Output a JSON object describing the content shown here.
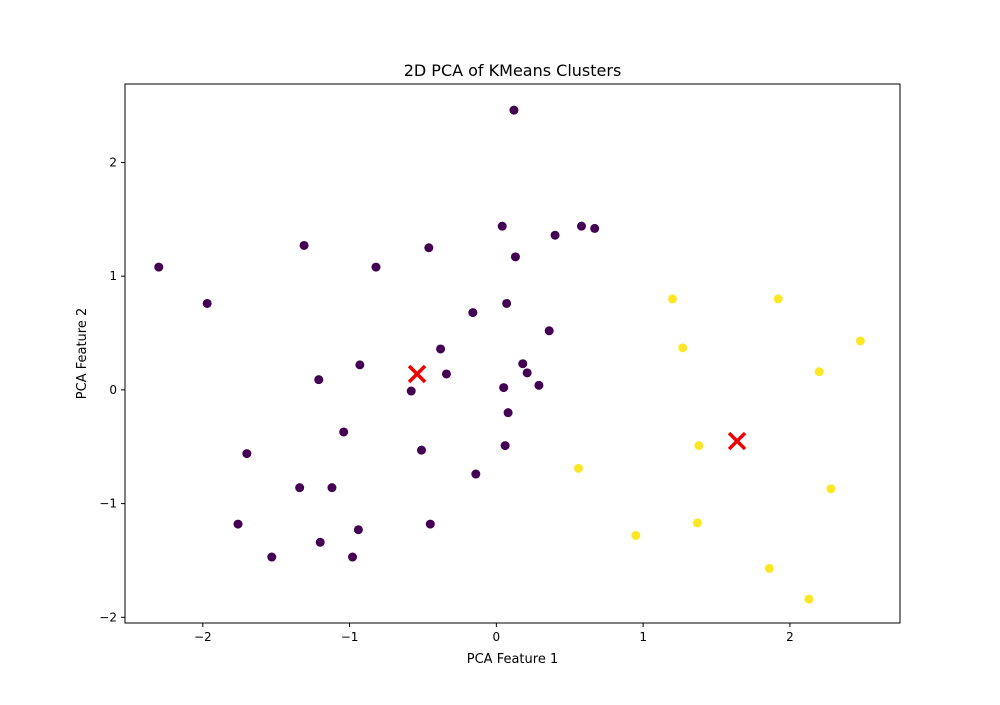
{
  "chart_data": {
    "type": "scatter",
    "title": "2D PCA of KMeans Clusters",
    "xlabel": "PCA Feature 1",
    "ylabel": "PCA Feature 2",
    "xlim": [
      -2.53,
      2.75
    ],
    "ylim": [
      -2.05,
      2.69
    ],
    "xticks": [
      -2,
      -1,
      0,
      1,
      2
    ],
    "yticks": [
      -2,
      -1,
      0,
      1,
      2
    ],
    "grid": false,
    "colors": {
      "cluster_0": "#440154",
      "cluster_1": "#fde725",
      "centroid": "#ee0000"
    },
    "series": [
      {
        "cluster": 0,
        "points": [
          [
            0.12,
            2.46
          ],
          [
            0.04,
            1.44
          ],
          [
            0.58,
            1.44
          ],
          [
            0.67,
            1.42
          ],
          [
            0.4,
            1.36
          ],
          [
            -1.31,
            1.27
          ],
          [
            -0.46,
            1.25
          ],
          [
            0.13,
            1.17
          ],
          [
            -2.3,
            1.08
          ],
          [
            -0.82,
            1.08
          ],
          [
            -1.97,
            0.76
          ],
          [
            0.07,
            0.76
          ],
          [
            -0.16,
            0.68
          ],
          [
            0.36,
            0.52
          ],
          [
            -0.38,
            0.36
          ],
          [
            -0.93,
            0.22
          ],
          [
            0.18,
            0.23
          ],
          [
            0.21,
            0.15
          ],
          [
            -0.34,
            0.14
          ],
          [
            -1.21,
            0.09
          ],
          [
            0.29,
            0.04
          ],
          [
            0.05,
            0.02
          ],
          [
            -0.58,
            -0.01
          ],
          [
            0.08,
            -0.2
          ],
          [
            -1.04,
            -0.37
          ],
          [
            0.06,
            -0.49
          ],
          [
            -0.51,
            -0.53
          ],
          [
            -1.7,
            -0.56
          ],
          [
            -0.14,
            -0.74
          ],
          [
            -1.34,
            -0.86
          ],
          [
            -1.12,
            -0.86
          ],
          [
            -1.76,
            -1.18
          ],
          [
            -0.45,
            -1.18
          ],
          [
            -0.94,
            -1.23
          ],
          [
            -1.2,
            -1.34
          ],
          [
            -1.53,
            -1.47
          ],
          [
            -0.98,
            -1.47
          ]
        ]
      },
      {
        "cluster": 1,
        "points": [
          [
            1.2,
            0.8
          ],
          [
            1.92,
            0.8
          ],
          [
            2.48,
            0.43
          ],
          [
            1.27,
            0.37
          ],
          [
            2.2,
            0.16
          ],
          [
            1.38,
            -0.49
          ],
          [
            0.56,
            -0.69
          ],
          [
            2.28,
            -0.87
          ],
          [
            1.37,
            -1.17
          ],
          [
            0.95,
            -1.28
          ],
          [
            1.86,
            -1.57
          ],
          [
            2.13,
            -1.84
          ]
        ]
      }
    ],
    "centroids": [
      [
        -0.54,
        0.14
      ],
      [
        1.64,
        -0.45
      ]
    ]
  }
}
